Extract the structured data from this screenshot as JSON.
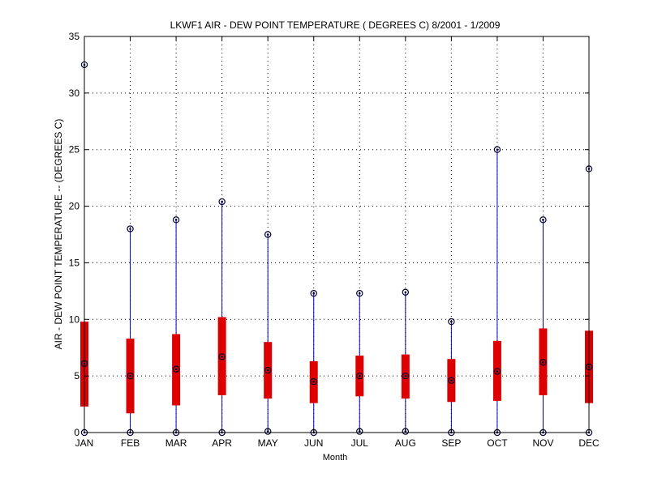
{
  "chart_data": {
    "type": "boxplot",
    "title": "LKWF1  AIR - DEW POINT TEMPERATURE ( DEGREES C) 8/2001 - 1/2009",
    "xlabel": "Month",
    "ylabel": "AIR - DEW POINT TEMPERATURE -- (DEGREES C)",
    "ylim": [
      0,
      35
    ],
    "yticks": [
      0,
      5,
      10,
      15,
      20,
      25,
      30,
      35
    ],
    "grid": true,
    "colors": {
      "whisker": "#0000cc",
      "box": "#dd0000",
      "marker": "#000033",
      "grid": "#000000"
    },
    "categories": [
      "JAN",
      "FEB",
      "MAR",
      "APR",
      "MAY",
      "JUN",
      "JUL",
      "AUG",
      "SEP",
      "OCT",
      "NOV",
      "DEC"
    ],
    "min": [
      0.0,
      0.0,
      0.0,
      0.0,
      0.1,
      0.0,
      0.1,
      0.1,
      0.0,
      0.0,
      0.0,
      0.0
    ],
    "q1": [
      2.3,
      1.7,
      2.4,
      3.3,
      3.0,
      2.6,
      3.2,
      3.0,
      2.7,
      2.8,
      3.3,
      2.6
    ],
    "median": [
      6.1,
      5.0,
      5.6,
      6.7,
      5.5,
      4.5,
      5.0,
      5.0,
      4.6,
      5.4,
      6.2,
      5.8
    ],
    "q3": [
      9.8,
      8.3,
      8.7,
      10.2,
      8.0,
      6.3,
      6.8,
      6.9,
      6.5,
      8.1,
      9.2,
      9.0
    ],
    "max": [
      32.5,
      18.0,
      18.8,
      20.4,
      17.5,
      12.3,
      12.3,
      12.4,
      9.8,
      25.0,
      18.8,
      23.3
    ]
  }
}
